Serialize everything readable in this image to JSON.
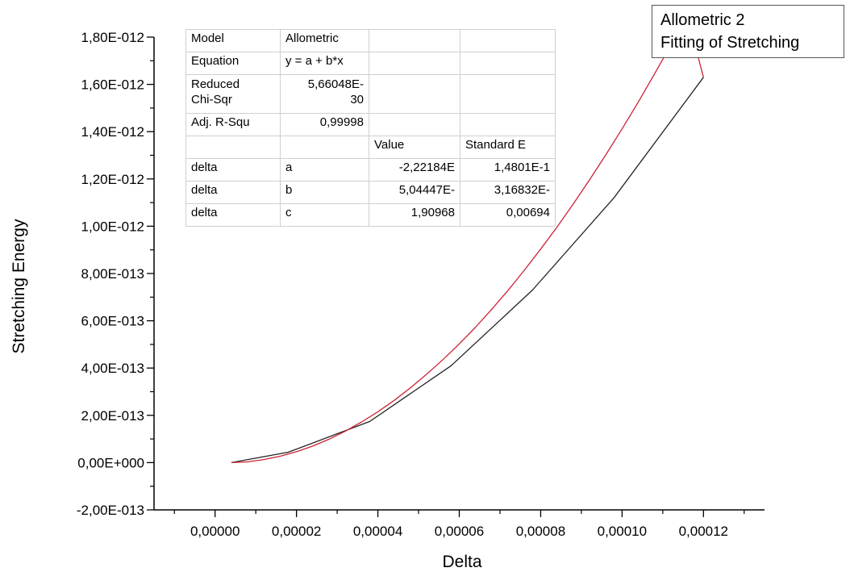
{
  "chart_data": {
    "type": "line",
    "xlabel": "Delta",
    "ylabel": "Stretching Energy",
    "xlim": [
      -1.5e-05,
      0.000135
    ],
    "ylim": [
      -2e-13,
      1.8e-12
    ],
    "x_ticks": [
      {
        "value": 0.0,
        "label": "0,00000"
      },
      {
        "value": 2e-05,
        "label": "0,00002"
      },
      {
        "value": 4e-05,
        "label": "0,00004"
      },
      {
        "value": 6e-05,
        "label": "0,00006"
      },
      {
        "value": 8e-05,
        "label": "0,00008"
      },
      {
        "value": 0.0001,
        "label": "0,00010"
      },
      {
        "value": 0.00012,
        "label": "0,00012"
      }
    ],
    "y_ticks": [
      {
        "value": -2e-13,
        "label": "-2,00E-013"
      },
      {
        "value": 0.0,
        "label": "0,00E+000"
      },
      {
        "value": 2e-13,
        "label": "2,00E-013"
      },
      {
        "value": 4e-13,
        "label": "4,00E-013"
      },
      {
        "value": 6e-13,
        "label": "6,00E-013"
      },
      {
        "value": 8e-13,
        "label": "8,00E-013"
      },
      {
        "value": 1e-12,
        "label": "1,00E-012"
      },
      {
        "value": 1.2e-12,
        "label": "1,20E-012"
      },
      {
        "value": 1.4e-12,
        "label": "1,40E-012"
      },
      {
        "value": 1.6e-12,
        "label": "1,60E-012"
      },
      {
        "value": 1.8e-12,
        "label": "1,80E-012"
      }
    ],
    "grid": false,
    "legend": {
      "placement": "top-right",
      "lines": [
        "Allometric 2",
        "Fitting of Stretching"
      ]
    },
    "series": [
      {
        "color": "#222222",
        "x": [
          4e-06,
          1.8e-05,
          3.8e-05,
          5.8e-05,
          7.8e-05,
          9.8e-05,
          0.00012
        ],
        "y": [
          0.0,
          4.4e-14,
          1.74e-13,
          4.1e-13,
          7.3e-13,
          1.12e-12,
          1.63e-12
        ]
      },
      {
        "name": "Allometric 2",
        "color": "#cc2233",
        "x": [
          4e-06,
          8e-06,
          1.2e-05,
          1.6e-05,
          2e-05,
          2.4e-05,
          2.8e-05,
          3.2e-05,
          3.6e-05,
          4e-05,
          4.4e-05,
          4.8e-05,
          5.2e-05,
          5.6e-05,
          6e-05,
          6.4e-05,
          6.8e-05,
          7.2e-05,
          7.6e-05,
          8e-05,
          8.4e-05,
          8.8e-05,
          9.2e-05,
          9.6e-05,
          0.0001,
          0.000104,
          0.000108,
          0.000112,
          0.000116,
          0.00012
        ],
        "y": [
          0.0,
          3e-15,
          1.3e-14,
          2.7e-14,
          4.6e-14,
          7e-14,
          9.9e-14,
          1.33e-13,
          1.72e-13,
          2.15e-13,
          2.63e-13,
          3.16e-13,
          3.74e-13,
          4.36e-13,
          5.02e-13,
          5.73e-13,
          6.49e-13,
          7.29e-13,
          8.14e-13,
          9.03e-13,
          9.96e-13,
          1.094e-12,
          1.196e-12,
          1.302e-12,
          1.412e-12,
          1.526e-12,
          1.645e-12,
          1.767e-12,
          1.894e-12,
          1.63e-12
        ]
      }
    ]
  },
  "stats_table": {
    "rows": [
      [
        "Model",
        "Allometric",
        "",
        ""
      ],
      [
        "Equation",
        "y = a + b*x",
        "",
        ""
      ],
      [
        "Reduced\nChi-Sqr",
        "5,66048E-\n30",
        "",
        ""
      ],
      [
        "Adj. R-Squ",
        "0,99998",
        "",
        ""
      ],
      [
        "",
        "",
        "Value",
        "Standard E"
      ],
      [
        "delta",
        "a",
        "-2,22184E",
        "1,4801E-1"
      ],
      [
        "delta",
        "b",
        "5,04447E-",
        "3,16832E-"
      ],
      [
        "delta",
        "c",
        "1,90968",
        "0,00694"
      ]
    ]
  }
}
